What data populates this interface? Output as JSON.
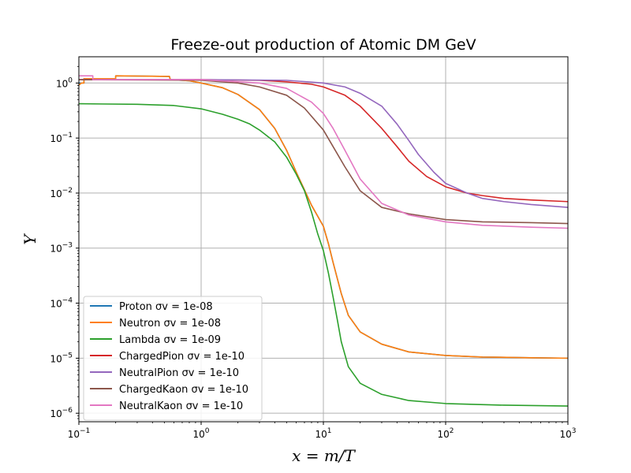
{
  "chart_data": {
    "type": "line",
    "title": "Freeze-out production of Atomic DM GeV",
    "xlabel": "x = m/T",
    "ylabel": "Y",
    "xscale": "log",
    "yscale": "log",
    "xlim": [
      0.1,
      1000
    ],
    "ylim": [
      7e-07,
      3
    ],
    "grid": true,
    "legend_position": "lower-left",
    "x_ticks": [
      {
        "value": 0.1,
        "base": "10",
        "exp": "−1"
      },
      {
        "value": 1,
        "base": "10",
        "exp": "0"
      },
      {
        "value": 10,
        "base": "10",
        "exp": "1"
      },
      {
        "value": 100,
        "base": "10",
        "exp": "2"
      },
      {
        "value": 1000,
        "base": "10",
        "exp": "3"
      }
    ],
    "y_ticks": [
      {
        "value": 1e-06,
        "base": "10",
        "exp": "−6"
      },
      {
        "value": 1e-05,
        "base": "10",
        "exp": "−5"
      },
      {
        "value": 0.0001,
        "base": "10",
        "exp": "−4"
      },
      {
        "value": 0.001,
        "base": "10",
        "exp": "−3"
      },
      {
        "value": 0.01,
        "base": "10",
        "exp": "−2"
      },
      {
        "value": 0.1,
        "base": "10",
        "exp": "−1"
      },
      {
        "value": 1,
        "base": "10",
        "exp": "0"
      }
    ],
    "series": [
      {
        "name": "Proton σv = 1e-08",
        "color": "#1f77b4",
        "points": [
          [
            0.1,
            1.0
          ],
          [
            0.11,
            1.0
          ],
          [
            0.11,
            1.2
          ],
          [
            0.2,
            1.2
          ],
          [
            0.2,
            1.35
          ],
          [
            0.55,
            1.32
          ],
          [
            0.56,
            1.15
          ],
          [
            0.8,
            1.1
          ],
          [
            1,
            1.0
          ],
          [
            1.5,
            0.82
          ],
          [
            2,
            0.62
          ],
          [
            3,
            0.33
          ],
          [
            4,
            0.15
          ],
          [
            5,
            0.06
          ],
          [
            6,
            0.024
          ],
          [
            8,
            0.006
          ],
          [
            10,
            0.0025
          ],
          [
            11,
            0.0012
          ],
          [
            12,
            0.00055
          ],
          [
            14,
            0.00015
          ],
          [
            16,
            6e-05
          ],
          [
            20,
            3e-05
          ],
          [
            30,
            1.8e-05
          ],
          [
            50,
            1.3e-05
          ],
          [
            100,
            1.12e-05
          ],
          [
            200,
            1.05e-05
          ],
          [
            500,
            1.02e-05
          ],
          [
            1000,
            1e-05
          ]
        ]
      },
      {
        "name": "Neutron σv = 1e-08",
        "color": "#ff7f0e",
        "points": [
          [
            0.1,
            0.92
          ],
          [
            0.105,
            1.0
          ],
          [
            0.11,
            1.0
          ],
          [
            0.11,
            1.2
          ],
          [
            0.2,
            1.2
          ],
          [
            0.2,
            1.35
          ],
          [
            0.55,
            1.32
          ],
          [
            0.56,
            1.15
          ],
          [
            0.8,
            1.1
          ],
          [
            1,
            1.0
          ],
          [
            1.5,
            0.82
          ],
          [
            2,
            0.62
          ],
          [
            3,
            0.33
          ],
          [
            4,
            0.15
          ],
          [
            5,
            0.06
          ],
          [
            6,
            0.024
          ],
          [
            8,
            0.006
          ],
          [
            10,
            0.0025
          ],
          [
            11,
            0.0012
          ],
          [
            12,
            0.00055
          ],
          [
            14,
            0.00015
          ],
          [
            16,
            6e-05
          ],
          [
            20,
            3e-05
          ],
          [
            30,
            1.8e-05
          ],
          [
            50,
            1.3e-05
          ],
          [
            100,
            1.12e-05
          ],
          [
            200,
            1.05e-05
          ],
          [
            500,
            1.02e-05
          ],
          [
            1000,
            1e-05
          ]
        ]
      },
      {
        "name": "Lambda σv = 1e-09",
        "color": "#2ca02c",
        "points": [
          [
            0.1,
            0.42
          ],
          [
            0.3,
            0.41
          ],
          [
            0.6,
            0.39
          ],
          [
            1,
            0.34
          ],
          [
            1.5,
            0.27
          ],
          [
            2,
            0.22
          ],
          [
            2.5,
            0.18
          ],
          [
            3,
            0.14
          ],
          [
            4,
            0.085
          ],
          [
            5,
            0.045
          ],
          [
            6,
            0.022
          ],
          [
            7,
            0.011
          ],
          [
            8,
            0.0045
          ],
          [
            9,
            0.0018
          ],
          [
            10,
            0.0009
          ],
          [
            11,
            0.00035
          ],
          [
            12,
            0.00013
          ],
          [
            13,
            5e-05
          ],
          [
            14,
            2e-05
          ],
          [
            16,
            7e-06
          ],
          [
            20,
            3.5e-06
          ],
          [
            30,
            2.2e-06
          ],
          [
            50,
            1.7e-06
          ],
          [
            100,
            1.5e-06
          ],
          [
            300,
            1.4e-06
          ],
          [
            1000,
            1.35e-06
          ]
        ]
      },
      {
        "name": "ChargedPion σv = 1e-10",
        "color": "#d62728",
        "points": [
          [
            0.1,
            1.15
          ],
          [
            1,
            1.15
          ],
          [
            3,
            1.12
          ],
          [
            5,
            1.05
          ],
          [
            8,
            0.95
          ],
          [
            10,
            0.85
          ],
          [
            15,
            0.6
          ],
          [
            20,
            0.38
          ],
          [
            30,
            0.15
          ],
          [
            40,
            0.07
          ],
          [
            50,
            0.038
          ],
          [
            70,
            0.02
          ],
          [
            100,
            0.013
          ],
          [
            150,
            0.01
          ],
          [
            200,
            0.009
          ],
          [
            300,
            0.008
          ],
          [
            500,
            0.0075
          ],
          [
            1000,
            0.007
          ]
        ]
      },
      {
        "name": "NeutralPion σv = 1e-10",
        "color": "#9467bd",
        "points": [
          [
            0.1,
            1.15
          ],
          [
            1,
            1.15
          ],
          [
            5,
            1.12
          ],
          [
            10,
            1.0
          ],
          [
            15,
            0.85
          ],
          [
            20,
            0.65
          ],
          [
            30,
            0.38
          ],
          [
            40,
            0.18
          ],
          [
            50,
            0.09
          ],
          [
            60,
            0.05
          ],
          [
            80,
            0.024
          ],
          [
            100,
            0.015
          ],
          [
            150,
            0.01
          ],
          [
            200,
            0.008
          ],
          [
            300,
            0.007
          ],
          [
            500,
            0.0062
          ],
          [
            1000,
            0.0055
          ]
        ]
      },
      {
        "name": "ChargedKaon σv = 1e-10",
        "color": "#8c564b",
        "points": [
          [
            0.1,
            1.15
          ],
          [
            1,
            1.12
          ],
          [
            2,
            1.0
          ],
          [
            3,
            0.85
          ],
          [
            5,
            0.6
          ],
          [
            7,
            0.35
          ],
          [
            10,
            0.14
          ],
          [
            12,
            0.07
          ],
          [
            15,
            0.03
          ],
          [
            20,
            0.011
          ],
          [
            30,
            0.0055
          ],
          [
            50,
            0.0042
          ],
          [
            100,
            0.0033
          ],
          [
            200,
            0.003
          ],
          [
            500,
            0.0029
          ],
          [
            1000,
            0.0028
          ]
        ]
      },
      {
        "name": "NeutralKaon σv = 1e-10",
        "color": "#e377c2",
        "points": [
          [
            0.1,
            1.35
          ],
          [
            0.13,
            1.35
          ],
          [
            0.13,
            1.15
          ],
          [
            1,
            1.15
          ],
          [
            3,
            1.0
          ],
          [
            5,
            0.8
          ],
          [
            8,
            0.45
          ],
          [
            10,
            0.28
          ],
          [
            12,
            0.15
          ],
          [
            15,
            0.06
          ],
          [
            20,
            0.018
          ],
          [
            30,
            0.0065
          ],
          [
            50,
            0.004
          ],
          [
            100,
            0.003
          ],
          [
            200,
            0.0026
          ],
          [
            500,
            0.0024
          ],
          [
            1000,
            0.0023
          ]
        ]
      }
    ]
  }
}
